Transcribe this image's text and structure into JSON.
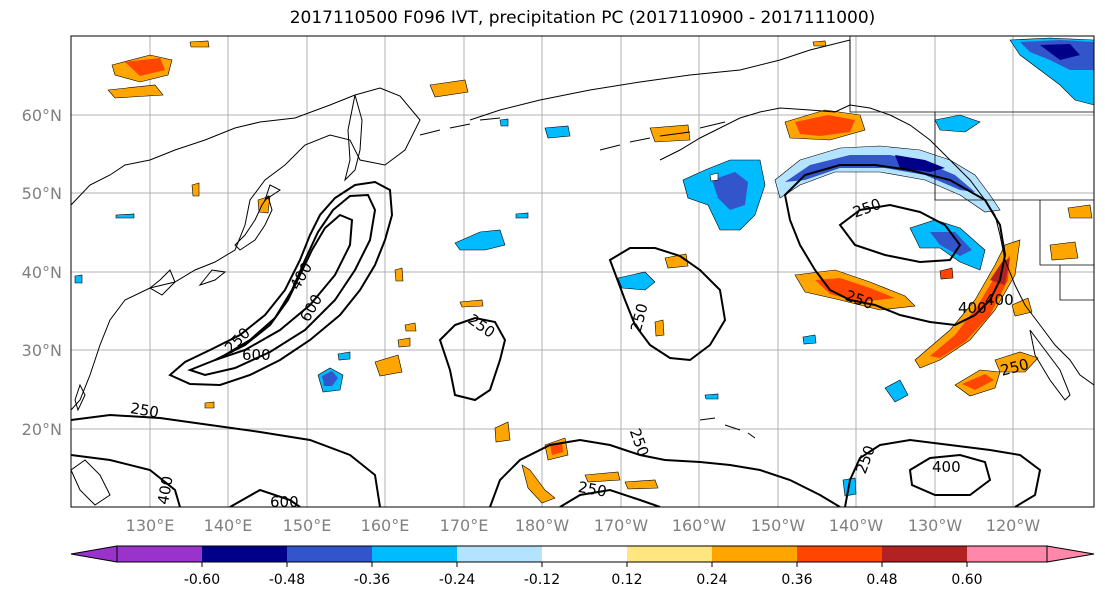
{
  "title": "2017110500 F096 IVT, precipitation PC (2017110900 - 2017111000)",
  "lat_labels": [
    "60°N",
    "50°N",
    "40°N",
    "30°N",
    "20°N"
  ],
  "lon_labels": [
    "130°E",
    "140°E",
    "150°E",
    "160°E",
    "170°E",
    "180°W",
    "170°W",
    "160°W",
    "150°W",
    "140°W",
    "130°W",
    "120°W"
  ],
  "colorbar": {
    "colors": [
      "#9933cc",
      "#000088",
      "#3355cc",
      "#00bbff",
      "#b3e3ff",
      "#ffffff",
      "#ffe680",
      "#ffa500",
      "#ff4500",
      "#b22222",
      "#ff88aa"
    ],
    "tick_labels": [
      "-0.60",
      "-0.48",
      "-0.36",
      "-0.24",
      "-0.12",
      "0.12",
      "0.24",
      "0.36",
      "0.48",
      "0.60"
    ]
  },
  "contour_labels": [
    "250",
    "400",
    "600",
    "250",
    "600",
    "400",
    "250",
    "250",
    "250",
    "250",
    "250",
    "400",
    "250",
    "250",
    "400",
    "250",
    "600",
    "400"
  ]
}
